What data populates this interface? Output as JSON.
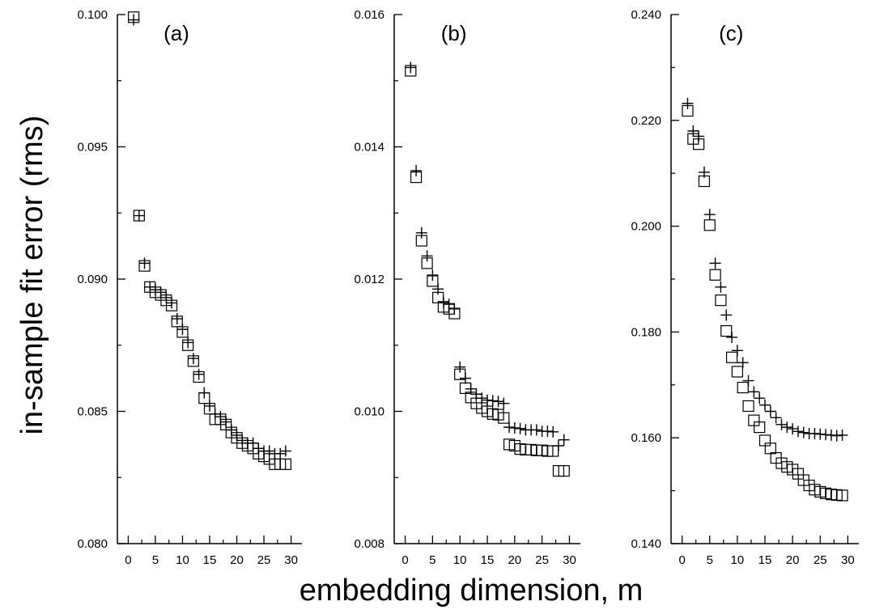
{
  "chart_data": [
    {
      "type": "scatter",
      "panel_label": "(a)",
      "xlim": [
        -2,
        32
      ],
      "ylim": [
        0.08,
        0.1
      ],
      "xticks": [
        0,
        5,
        10,
        15,
        20,
        25,
        30
      ],
      "yticks": [
        0.08,
        0.085,
        0.09,
        0.095,
        0.1
      ],
      "ytick_labels": [
        "0.080",
        "0.085",
        "0.090",
        "0.095",
        "0.100"
      ],
      "x": [
        1,
        2,
        3,
        4,
        5,
        6,
        7,
        8,
        9,
        10,
        11,
        12,
        13,
        14,
        15,
        16,
        17,
        18,
        19,
        20,
        21,
        22,
        23,
        24,
        25,
        26,
        27,
        28,
        29
      ],
      "series": [
        {
          "marker": "square",
          "values": [
            0.0999,
            0.0924,
            0.0905,
            0.0897,
            0.0895,
            0.0894,
            0.0892,
            0.089,
            0.0884,
            0.088,
            0.0875,
            0.0869,
            0.0863,
            0.0855,
            0.0851,
            0.0847,
            0.0847,
            0.0845,
            0.0842,
            0.084,
            0.0838,
            0.0837,
            0.0836,
            0.0834,
            0.0833,
            0.0832,
            0.083,
            0.083,
            0.083
          ]
        },
        {
          "marker": "plus",
          "values": [
            0.0998,
            0.0924,
            0.0906,
            0.0897,
            0.0896,
            0.0895,
            0.0893,
            0.0891,
            0.0885,
            0.0881,
            0.0876,
            0.087,
            0.0864,
            0.0857,
            0.0852,
            0.0849,
            0.0848,
            0.0846,
            0.0843,
            0.0841,
            0.0839,
            0.0838,
            0.0838,
            0.0836,
            0.0835,
            0.0835,
            0.0834,
            0.0834,
            0.0835
          ]
        }
      ]
    },
    {
      "type": "scatter",
      "panel_label": "(b)",
      "xlim": [
        -2,
        32
      ],
      "ylim": [
        0.008,
        0.016
      ],
      "xticks": [
        0,
        5,
        10,
        15,
        20,
        25,
        30
      ],
      "yticks": [
        0.008,
        0.01,
        0.012,
        0.014,
        0.016
      ],
      "ytick_labels": [
        "0.008",
        "0.010",
        "0.012",
        "0.014",
        "0.016"
      ],
      "x": [
        1,
        2,
        3,
        4,
        5,
        6,
        7,
        8,
        9,
        10,
        11,
        12,
        13,
        14,
        15,
        16,
        17,
        18,
        19,
        20,
        21,
        22,
        23,
        24,
        25,
        26,
        27,
        28,
        29
      ],
      "series": [
        {
          "marker": "square",
          "values": [
            0.01515,
            0.01354,
            0.01258,
            0.01224,
            0.01197,
            0.01172,
            0.01158,
            0.01155,
            0.01148,
            0.01056,
            0.01035,
            0.01021,
            0.01012,
            0.01005,
            0.01,
            0.00996,
            0.00995,
            0.0099,
            0.0095,
            0.00948,
            0.00943,
            0.00942,
            0.00942,
            0.00941,
            0.00941,
            0.0094,
            0.0094,
            0.0091,
            0.0091
          ]
        },
        {
          "marker": "plus",
          "values": [
            0.0152,
            0.01364,
            0.0127,
            0.01235,
            0.01206,
            0.01185,
            0.01165,
            0.01162,
            0.01155,
            0.01067,
            0.0105,
            0.01034,
            0.01026,
            0.0102,
            0.01017,
            0.01016,
            0.01015,
            0.01012,
            0.00976,
            0.00975,
            0.00974,
            0.00972,
            0.00972,
            0.00972,
            0.0097,
            0.0097,
            0.00969,
            0.00948,
            0.00957
          ]
        }
      ]
    },
    {
      "type": "scatter",
      "panel_label": "(c)",
      "xlim": [
        -2,
        32
      ],
      "ylim": [
        0.14,
        0.24
      ],
      "xticks": [
        0,
        5,
        10,
        15,
        20,
        25,
        30
      ],
      "yticks": [
        0.14,
        0.16,
        0.18,
        0.2,
        0.22,
        0.24
      ],
      "ytick_labels": [
        "0.140",
        "0.160",
        "0.180",
        "0.200",
        "0.220",
        "0.240"
      ],
      "x": [
        1,
        2,
        3,
        4,
        5,
        6,
        7,
        8,
        9,
        10,
        11,
        12,
        13,
        14,
        15,
        16,
        17,
        18,
        19,
        20,
        21,
        22,
        23,
        24,
        25,
        26,
        27,
        28,
        29
      ],
      "series": [
        {
          "marker": "square",
          "values": [
            0.2218,
            0.2165,
            0.2155,
            0.2085,
            0.2002,
            0.1908,
            0.186,
            0.1802,
            0.1752,
            0.1725,
            0.1695,
            0.166,
            0.1633,
            0.162,
            0.1595,
            0.158,
            0.1562,
            0.1552,
            0.1545,
            0.154,
            0.1532,
            0.152,
            0.151,
            0.1502,
            0.1498,
            0.1495,
            0.1493,
            0.1492,
            0.1491
          ]
        },
        {
          "marker": "plus",
          "values": [
            0.2232,
            0.218,
            0.217,
            0.2102,
            0.2022,
            0.193,
            0.1885,
            0.1832,
            0.179,
            0.1765,
            0.1742,
            0.1708,
            0.1687,
            0.1675,
            0.1662,
            0.165,
            0.1638,
            0.1625,
            0.162,
            0.1617,
            0.1612,
            0.161,
            0.1608,
            0.1608,
            0.1607,
            0.1606,
            0.1605,
            0.1604,
            0.1605
          ]
        }
      ]
    }
  ],
  "ylabel": "in-sample fit error (rms)",
  "xlabel": "embedding dimension, m"
}
